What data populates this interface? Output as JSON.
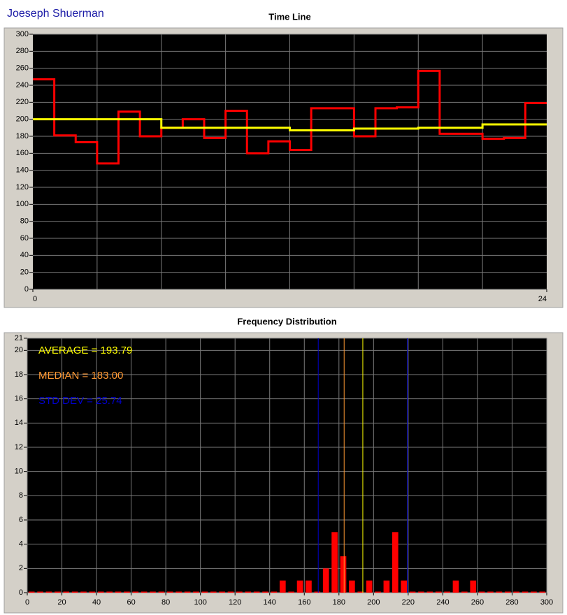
{
  "header": {
    "title": "Joeseph Shuerman"
  },
  "chart_data": [
    {
      "type": "line",
      "step": "post",
      "title": "Time Line",
      "x": [
        0,
        1,
        2,
        3,
        4,
        5,
        6,
        7,
        8,
        9,
        10,
        11,
        12,
        13,
        14,
        15,
        16,
        17,
        18,
        19,
        20,
        21,
        22,
        23
      ],
      "series": [
        {
          "color": "#ff0000",
          "values": [
            247,
            181,
            173,
            148,
            209,
            180,
            190,
            200,
            178,
            210,
            160,
            174,
            164,
            213,
            213,
            180,
            213,
            214,
            257,
            183,
            183,
            177,
            178,
            219
          ]
        },
        {
          "color": "#ffff00",
          "values": [
            200,
            200,
            200,
            200,
            200,
            200,
            190,
            190,
            190,
            190,
            190,
            190,
            187,
            187,
            187,
            189,
            189,
            189,
            190,
            190,
            190,
            194,
            194,
            194
          ]
        }
      ],
      "xlim": [
        0,
        24
      ],
      "xticks": [
        0,
        24
      ],
      "xgrid": [
        3,
        6,
        9,
        12,
        15,
        18,
        21
      ],
      "ylim": [
        0,
        300
      ],
      "yticks": [
        0,
        20,
        40,
        60,
        80,
        100,
        120,
        140,
        160,
        180,
        200,
        220,
        240,
        260,
        280,
        300
      ],
      "grid": true
    },
    {
      "type": "histogram",
      "title": "Frequency Distribution",
      "color": "#ff0000",
      "bins": [
        0,
        5,
        10,
        15,
        20,
        25,
        30,
        35,
        40,
        45,
        50,
        55,
        60,
        65,
        70,
        75,
        80,
        85,
        90,
        95,
        100,
        105,
        110,
        115,
        120,
        125,
        130,
        135,
        140,
        145,
        150,
        155,
        160,
        165,
        170,
        175,
        180,
        185,
        190,
        195,
        200,
        205,
        210,
        215,
        220,
        225,
        230,
        235,
        240,
        245,
        250,
        255,
        260,
        265,
        270,
        275,
        280,
        285,
        290,
        295,
        300
      ],
      "counts": [
        0,
        0,
        0,
        0,
        0,
        0,
        0,
        0,
        0,
        0,
        0,
        0,
        0,
        0,
        0,
        0,
        0,
        0,
        0,
        0,
        0,
        0,
        0,
        0,
        0,
        0,
        0,
        0,
        0,
        1,
        0,
        1,
        1,
        0,
        2,
        5,
        3,
        1,
        0,
        1,
        0,
        1,
        5,
        1,
        0,
        0,
        0,
        0,
        0,
        1,
        0,
        1,
        0,
        0,
        0,
        0,
        0,
        0,
        0,
        0
      ],
      "annotations": [
        {
          "label": "AVERAGE = 193.79",
          "value": 193.79,
          "color": "#ffff00"
        },
        {
          "label": "MEDIAN = 183.00",
          "value": 183.0,
          "color": "#ff9933"
        },
        {
          "label": "STD DEV = 25.74",
          "value": 25.74,
          "color": "#0000cc"
        }
      ],
      "xlim": [
        0,
        300
      ],
      "xticks": [
        0,
        20,
        40,
        60,
        80,
        100,
        120,
        140,
        160,
        180,
        200,
        220,
        240,
        260,
        280,
        300
      ],
      "ylim": [
        0,
        21
      ],
      "yticks": [
        0,
        2,
        4,
        6,
        8,
        10,
        12,
        14,
        16,
        18,
        20,
        21
      ],
      "grid": true
    }
  ]
}
